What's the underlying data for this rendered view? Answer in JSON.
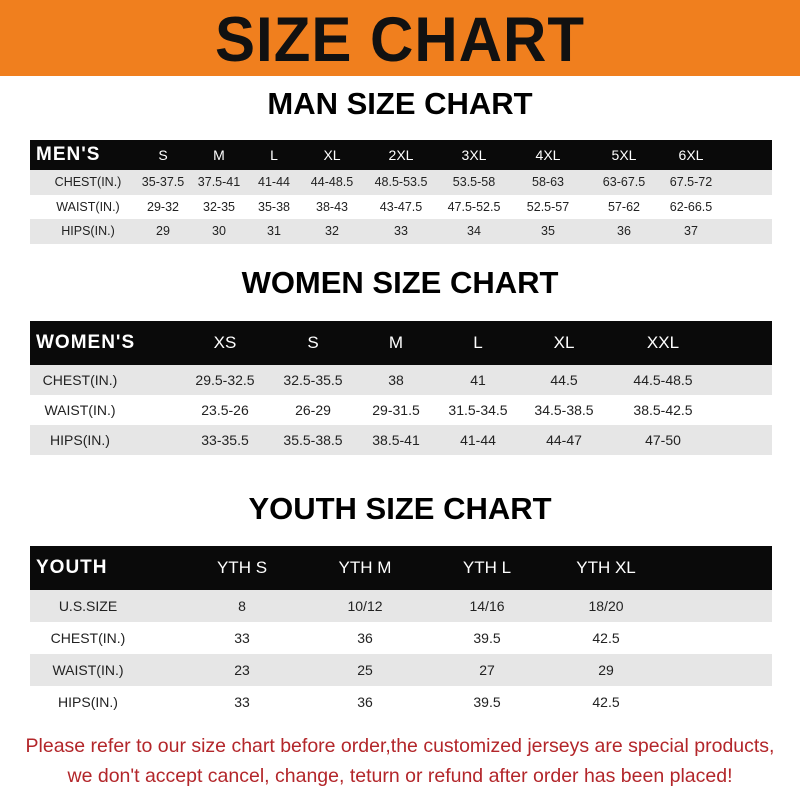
{
  "banner_title": "SIZE CHART",
  "tables": [
    {
      "title": "MAN SIZE CHART",
      "header": "MEN'S",
      "sizes": [
        "S",
        "M",
        "L",
        "XL",
        "2XL",
        "3XL",
        "4XL",
        "5XL",
        "6XL"
      ],
      "rows": [
        {
          "label": "CHEST(IN.)",
          "values": [
            "35-37.5",
            "37.5-41",
            "41-44",
            "44-48.5",
            "48.5-53.5",
            "53.5-58",
            "58-63",
            "63-67.5",
            "67.5-72"
          ]
        },
        {
          "label": "WAIST(IN.)",
          "values": [
            "29-32",
            "32-35",
            "35-38",
            "38-43",
            "43-47.5",
            "47.5-52.5",
            "52.5-57",
            "57-62",
            "62-66.5"
          ]
        },
        {
          "label": "HIPS(IN.)",
          "values": [
            "29",
            "30",
            "31",
            "32",
            "33",
            "34",
            "35",
            "36",
            "37"
          ]
        }
      ]
    },
    {
      "title": "WOMEN SIZE CHART",
      "header": "WOMEN'S",
      "sizes": [
        "XS",
        "S",
        "M",
        "L",
        "XL",
        "XXL"
      ],
      "rows": [
        {
          "label": "CHEST(IN.)",
          "values": [
            "29.5-32.5",
            "32.5-35.5",
            "38",
            "41",
            "44.5",
            "44.5-48.5"
          ]
        },
        {
          "label": "WAIST(IN.)",
          "values": [
            "23.5-26",
            "26-29",
            "29-31.5",
            "31.5-34.5",
            "34.5-38.5",
            "38.5-42.5"
          ]
        },
        {
          "label": "HIPS(IN.)",
          "values": [
            "33-35.5",
            "35.5-38.5",
            "38.5-41",
            "41-44",
            "44-47",
            "47-50"
          ]
        }
      ]
    },
    {
      "title": "YOUTH SIZE CHART",
      "header": "YOUTH",
      "sizes": [
        "YTH S",
        "YTH M",
        "YTH L",
        "YTH XL"
      ],
      "rows": [
        {
          "label": "U.S.SIZE",
          "values": [
            "8",
            "10/12",
            "14/16",
            "18/20"
          ]
        },
        {
          "label": "CHEST(IN.)",
          "values": [
            "33",
            "36",
            "39.5",
            "42.5"
          ]
        },
        {
          "label": "WAIST(IN.)",
          "values": [
            "23",
            "25",
            "27",
            "29"
          ]
        },
        {
          "label": "HIPS(IN.)",
          "values": [
            "33",
            "36",
            "39.5",
            "42.5"
          ]
        }
      ]
    }
  ],
  "footer": {
    "line1": "Please refer to our size chart before order,the customized jerseys are special products,",
    "line2": "we don't accept cancel, change, teturn or refund after order has been placed!"
  }
}
